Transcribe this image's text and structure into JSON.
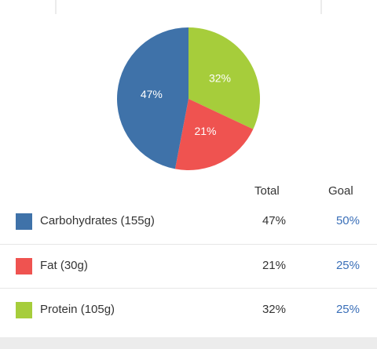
{
  "colors": {
    "carbs": "#3f72a9",
    "fat": "#ef5350",
    "protein": "#a6cd3b",
    "goal_text": "#3a6fb8"
  },
  "chart_data": {
    "type": "pie",
    "slices": [
      {
        "name": "Protein",
        "value": 32,
        "label": "32%",
        "color": "#a6cd3b"
      },
      {
        "name": "Fat",
        "value": 21,
        "label": "21%",
        "color": "#ef5350"
      },
      {
        "name": "Carbohydrates",
        "value": 47,
        "label": "47%",
        "color": "#3f72a9"
      }
    ]
  },
  "table": {
    "header_total": "Total",
    "header_goal": "Goal",
    "rows": [
      {
        "label": "Carbohydrates (155g)",
        "total": "47%",
        "goal": "50%",
        "color": "#3f72a9"
      },
      {
        "label": "Fat (30g)",
        "total": "21%",
        "goal": "25%",
        "color": "#ef5350"
      },
      {
        "label": "Protein (105g)",
        "total": "32%",
        "goal": "25%",
        "color": "#a6cd3b"
      }
    ]
  }
}
